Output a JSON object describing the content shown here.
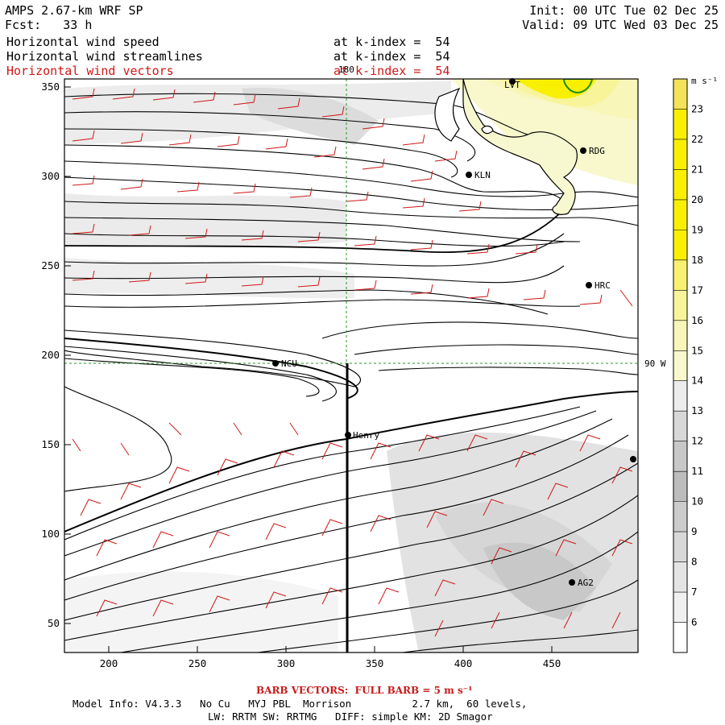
{
  "header": {
    "model_title": "AMPS 2.67-km WRF SP",
    "forecast": "Fcst:   33 h",
    "init": "Init: 00 UTC Tue 02 Dec 25",
    "valid": "Valid: 09 UTC Wed 03 Dec 25",
    "fields": [
      {
        "name": "Horizontal wind speed",
        "level": "at k-index =  54",
        "color": "#000000"
      },
      {
        "name": "Horizontal wind streamlines",
        "level": "at k-index =  54",
        "color": "#000000"
      },
      {
        "name": "Horizontal wind vectors",
        "level": "at k-index =  54",
        "color": "#d01818"
      }
    ]
  },
  "map": {
    "x_ticks": [
      "200",
      "250",
      "300",
      "350",
      "400",
      "450"
    ],
    "y_ticks": [
      "350",
      "300",
      "250",
      "200",
      "150",
      "100",
      "50"
    ],
    "meridian_label": "180",
    "parallel_label": "90 W",
    "stations": [
      {
        "name": "LVT"
      },
      {
        "name": "RDG"
      },
      {
        "name": "KLN"
      },
      {
        "name": "HRC"
      },
      {
        "name": "NCU"
      },
      {
        "name": "Henry"
      },
      {
        "name": "AG2"
      }
    ]
  },
  "colorbar": {
    "unit": "m s⁻¹",
    "levels": [
      "23",
      "22",
      "21",
      "20",
      "19",
      "18",
      "17",
      "16",
      "15",
      "14",
      "13",
      "12",
      "11",
      "10",
      "9",
      "8",
      "7",
      "6"
    ],
    "colors": [
      "#f2e35a",
      "#f8f000",
      "#f8f000",
      "#f8f000",
      "#f8f000",
      "#f8f000",
      "#f8f070",
      "#f8f49a",
      "#f8f6b8",
      "#f8f8cc",
      "#ececec",
      "#d8d8d8",
      "#c8c8c8",
      "#bcbcbc",
      "#cccccc",
      "#d8d8d8",
      "#e4e4e4",
      "#f0f0f0",
      "#ffffff"
    ]
  },
  "footer": {
    "barb_title": "BARB VECTORS:  FULL BARB = 5 m s⁻¹",
    "line1": "Model Info: V4.3.3   No Cu   MYJ PBL  Morrison          2.7 km,  60 levels,",
    "line2": "LW: RRTM SW: RRTMG   DIFF: simple KM: 2D Smagor"
  }
}
